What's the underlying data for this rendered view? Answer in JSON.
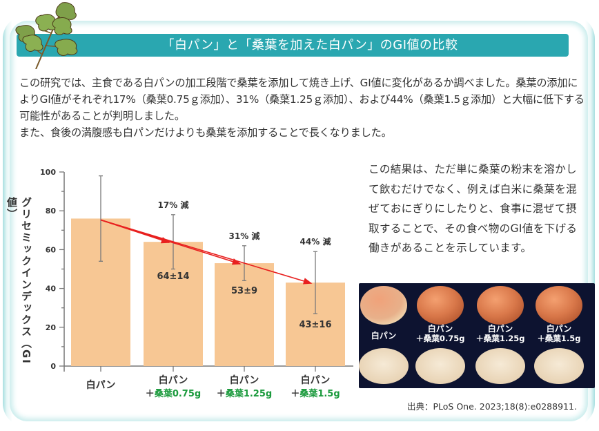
{
  "header": {
    "title": "「白パン」と「桑葉を加えた白パン」のGI値の比較"
  },
  "intro": {
    "paragraphs": [
      "この研究では、主食である白パンの加工段階で桑葉を添加して焼き上げ、GI値に変化があるか調べました。桑葉の添加によりGI値がそれぞれ17%（桑葉0.75ｇ添加）、31%（桑葉1.25ｇ添加）、および44%（桑葉1.5ｇ添加）と大幅に低下する可能性があることが判明しました。",
      "また、食後の満腹感も白パンだけよりも桑葉を添加することで長くなりました。"
    ]
  },
  "side_text": "この結果は、ただ単に桑葉の粉末を溶かして飲むだけでなく、例えば白米に桑葉を混ぜておにぎりにしたりと、食事に混ぜて摂取することで、その食べ物のGI値を下げる働きがあることを示しています。",
  "photo": {
    "labels": [
      {
        "line1": "白パン",
        "line2": ""
      },
      {
        "line1": "白パン",
        "line2": "＋桑葉0.75g"
      },
      {
        "line1": "白パン",
        "line2": "＋桑葉1.25g"
      },
      {
        "line1": "白パン",
        "line2": "＋桑葉1.5g"
      }
    ]
  },
  "source": "出典：PLoS One. 2023;18(8):e0288911.",
  "colors": {
    "title_bar": "#2aa7b0",
    "bar": "#f7c794",
    "arrow": "#e8201f",
    "green_label": "#1a9a3c",
    "error_bar": "#7a7a7a"
  },
  "chart_data": {
    "type": "bar",
    "title": "",
    "xlabel": "",
    "ylabel": "グリセミックインデックス（GI値）",
    "ylim": [
      0,
      100
    ],
    "yticks": [
      0,
      20,
      40,
      60,
      80,
      100
    ],
    "grid": false,
    "categories": [
      "白パン",
      "白パン＋桑葉0.75g",
      "白パン＋桑葉1.25g",
      "白パン＋桑葉1.5g"
    ],
    "category_labels": [
      {
        "line1": "白パン",
        "prefix": "",
        "green": ""
      },
      {
        "line1": "白パン",
        "prefix": "＋",
        "green": "桑葉0.75g"
      },
      {
        "line1": "白パン",
        "prefix": "＋",
        "green": "桑葉1.25g"
      },
      {
        "line1": "白パン",
        "prefix": "＋",
        "green": "桑葉1.5g"
      }
    ],
    "values": [
      76,
      64,
      53,
      43
    ],
    "errors": [
      22,
      14,
      9,
      16
    ],
    "value_labels": [
      "",
      "64±14",
      "53±9",
      "43±16"
    ],
    "annotations": [
      "",
      "17% 減",
      "31% 減",
      "44% 減"
    ]
  }
}
